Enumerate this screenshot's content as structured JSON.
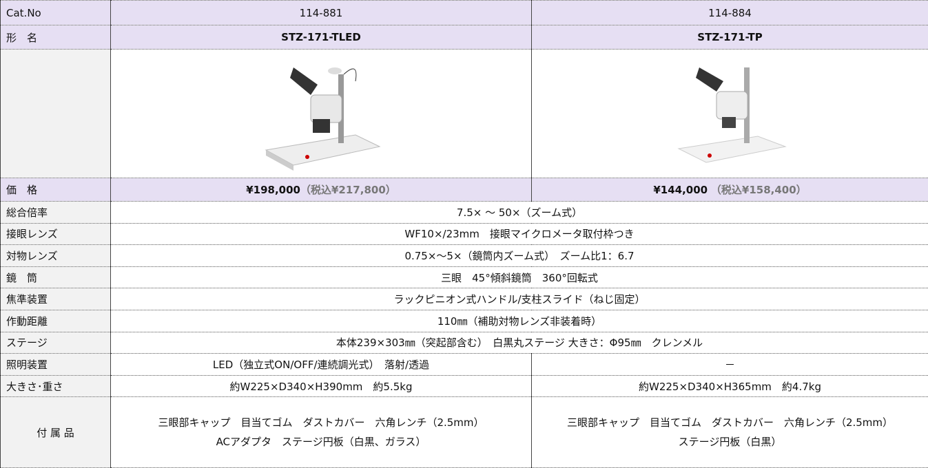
{
  "table": {
    "rows": [
      {
        "label": "Cat.No",
        "cells": [
          "114-881",
          "114-884"
        ]
      },
      {
        "label": "形　名",
        "cells": [
          "STZ-171-TLED",
          "STZ-171-TP"
        ]
      },
      {
        "label": "価　格",
        "cells": [
          {
            "price": "¥198,000",
            "tax": "（税込¥217,800）"
          },
          {
            "price": "¥144,000",
            "tax": "（税込¥158,400）"
          }
        ]
      },
      {
        "label": "総合倍率",
        "cells": [
          "7.5× ～ 50×（ズーム式）"
        ]
      },
      {
        "label": "接眼レンズ",
        "cells": [
          "WF10×/23mm　接眼マイクロメータ取付枠つき"
        ]
      },
      {
        "label": "対物レンズ",
        "cells": [
          "0.75×～5×（鏡筒内ズーム式）　ズーム比1：6.7"
        ]
      },
      {
        "label": "鏡　筒",
        "cells": [
          "三眼　45°傾斜鏡筒　360°回転式"
        ]
      },
      {
        "label": "焦準装置",
        "cells": [
          "ラックピニオン式ハンドル/支柱スライド（ねじ固定）"
        ]
      },
      {
        "label": "作動距離",
        "cells": [
          "110㎜（補助対物レンズ非装着時）"
        ]
      },
      {
        "label": "ステージ",
        "cells": [
          "本体239×303㎜（突起部含む）　白黒丸ステージ 大きさ：Φ95㎜　クレンメル"
        ]
      },
      {
        "label": "照明装置",
        "cells": [
          "LED（独立式ON/OFF/連続調光式）　落射/透過",
          "－"
        ]
      },
      {
        "label": "大きさ･重さ",
        "cells": [
          "約W225×D340×H390mm　約5.5kg",
          "約W225×D340×H365mm　約4.7kg"
        ]
      },
      {
        "label": "付 属 品",
        "cells": [
          [
            "三眼部キャップ　目当てゴム　ダストカバー　六角レンチ（2.5mm）",
            "ACアダプタ　ステージ円板（白黒、ガラス）"
          ],
          [
            "三眼部キャップ　目当てゴム　ダストカバー　六角レンチ（2.5mm）",
            "ステージ円板（白黒）"
          ]
        ]
      }
    ]
  }
}
